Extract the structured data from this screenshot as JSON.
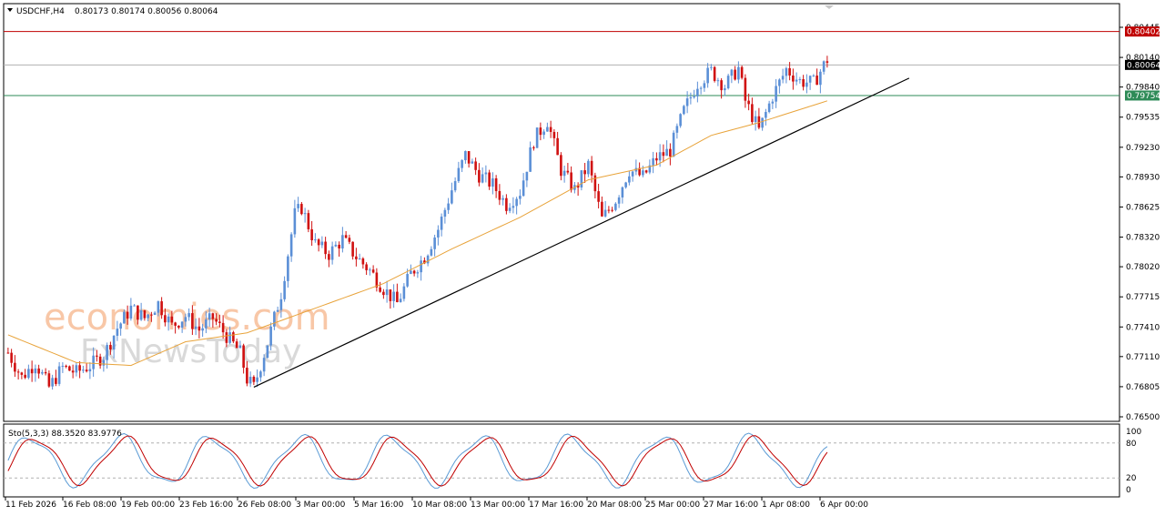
{
  "header": {
    "symbol_label": "USDCHF,H4",
    "ohlc": "0.80173 0.80174 0.80056 0.80064"
  },
  "watermark": {
    "line1": "economies.com",
    "line2": "FxNewsToday"
  },
  "indicator": {
    "label": "Sto(5,3,3) 88.3520 83.9776",
    "main_value": 88.352,
    "signal_value": 83.9776,
    "levels": [
      20,
      80
    ],
    "range": [
      0,
      100
    ],
    "tick_labels": [
      "100",
      "80",
      "20",
      "0"
    ],
    "colors": {
      "main": "#5b9bd5",
      "signal": "#c00000",
      "level": "#b0b0b0"
    }
  },
  "price_lines": {
    "resistance": {
      "value": 0.80402,
      "label": "0.80402",
      "color": "#c00000"
    },
    "current": {
      "value": 0.80064,
      "label": "0.80064",
      "color": "#000000"
    },
    "support": {
      "value": 0.79754,
      "label": "0.79754",
      "color": "#2e8b57"
    }
  },
  "colors": {
    "bull": "#5b8fd6",
    "bear": "#d01010",
    "ma": "#e8a33a",
    "trendline": "#000000",
    "wm_orange": "#f5b48a",
    "wm_gray": "#d0d0d0"
  },
  "chart_data": {
    "type": "candlestick",
    "symbol": "USDCHF",
    "timeframe": "H4",
    "y_ticks": [
      "0.80445",
      "0.80140",
      "0.79840",
      "0.79535",
      "0.79230",
      "0.78930",
      "0.78625",
      "0.78320",
      "0.78020",
      "0.77715",
      "0.77410",
      "0.77110",
      "0.76805",
      "0.76500"
    ],
    "ylim": [
      0.765,
      0.80445
    ],
    "x_labels": [
      "11 Feb 2026",
      "16 Feb 08:00",
      "19 Feb 00:00",
      "23 Feb 16:00",
      "26 Feb 08:00",
      "3 Mar 00:00",
      "5 Mar 16:00",
      "10 Mar 08:00",
      "13 Mar 00:00",
      "17 Mar 16:00",
      "20 Mar 08:00",
      "25 Mar 00:00",
      "27 Mar 16:00",
      "1 Apr 08:00",
      "6 Apr 00:00"
    ],
    "price_path": [
      [
        0,
        0.7715
      ],
      [
        4,
        0.769
      ],
      [
        8,
        0.7705
      ],
      [
        12,
        0.768
      ],
      [
        16,
        0.77
      ],
      [
        20,
        0.7695
      ],
      [
        24,
        0.7702
      ],
      [
        28,
        0.7712
      ],
      [
        32,
        0.774
      ],
      [
        36,
        0.776
      ],
      [
        40,
        0.775
      ],
      [
        44,
        0.7765
      ],
      [
        48,
        0.7742
      ],
      [
        52,
        0.7752
      ],
      [
        56,
        0.7738
      ],
      [
        60,
        0.775
      ],
      [
        64,
        0.7732
      ],
      [
        68,
        0.7715
      ],
      [
        70,
        0.7688
      ],
      [
        72,
        0.768
      ],
      [
        76,
        0.7725
      ],
      [
        80,
        0.7775
      ],
      [
        84,
        0.7855
      ],
      [
        86,
        0.7862
      ],
      [
        90,
        0.7825
      ],
      [
        94,
        0.7815
      ],
      [
        98,
        0.783
      ],
      [
        102,
        0.7812
      ],
      [
        106,
        0.7798
      ],
      [
        110,
        0.778
      ],
      [
        114,
        0.7765
      ],
      [
        118,
        0.7795
      ],
      [
        122,
        0.7812
      ],
      [
        126,
        0.784
      ],
      [
        130,
        0.788
      ],
      [
        134,
        0.7915
      ],
      [
        138,
        0.7895
      ],
      [
        142,
        0.7885
      ],
      [
        146,
        0.7865
      ],
      [
        150,
        0.7878
      ],
      [
        154,
        0.793
      ],
      [
        158,
        0.795
      ],
      [
        162,
        0.79
      ],
      [
        166,
        0.788
      ],
      [
        170,
        0.7905
      ],
      [
        174,
        0.785
      ],
      [
        178,
        0.787
      ],
      [
        182,
        0.79
      ],
      [
        186,
        0.7893
      ],
      [
        190,
        0.7912
      ],
      [
        194,
        0.792
      ],
      [
        198,
        0.796
      ],
      [
        202,
        0.7988
      ],
      [
        206,
        0.8
      ],
      [
        210,
        0.7985
      ],
      [
        214,
        0.8003
      ],
      [
        216,
        0.797
      ],
      [
        220,
        0.794
      ],
      [
        224,
        0.7975
      ],
      [
        228,
        0.8002
      ],
      [
        232,
        0.799
      ],
      [
        236,
        0.7988
      ],
      [
        240,
        0.8012
      ]
    ],
    "moving_average": [
      [
        0,
        0.7733
      ],
      [
        20,
        0.7705
      ],
      [
        36,
        0.7702
      ],
      [
        52,
        0.7726
      ],
      [
        70,
        0.7735
      ],
      [
        90,
        0.776
      ],
      [
        110,
        0.7785
      ],
      [
        130,
        0.782
      ],
      [
        150,
        0.7852
      ],
      [
        170,
        0.789
      ],
      [
        190,
        0.7905
      ],
      [
        206,
        0.7935
      ],
      [
        220,
        0.7948
      ],
      [
        240,
        0.797
      ]
    ],
    "trendline": [
      [
        72,
        0.768
      ],
      [
        264,
        0.7993
      ]
    ],
    "bar_count_visible": 241
  }
}
